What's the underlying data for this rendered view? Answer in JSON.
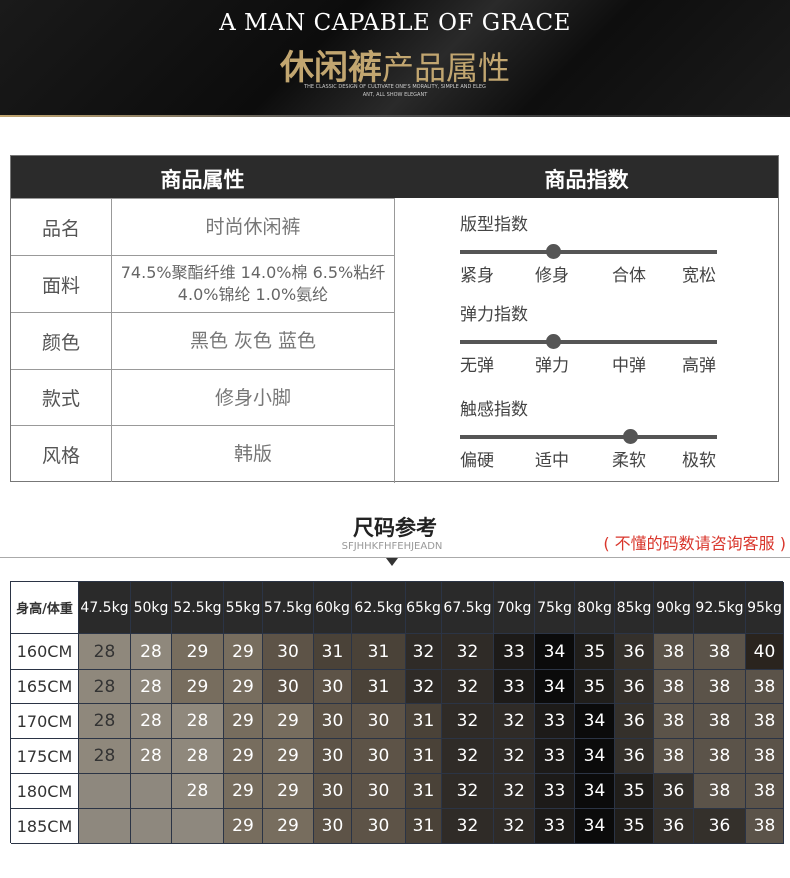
{
  "banner": {
    "title_en": "A MAN CAPABLE OF GRACE",
    "title_cn_bold": "休闲裤",
    "title_cn_light": "产品属性",
    "tagline_1": "THE CLASSIC DESIGN OF CULTIVATE ONE'S MORALITY, SIMPLE AND ELEG",
    "tagline_2": "ANT, ALL SHOW ELEGANT",
    "accent": "#c2a670"
  },
  "attributes": {
    "header_left": "商品属性",
    "header_right": "商品指数",
    "rows": [
      {
        "k": "品名",
        "v": "时尚休闲裤"
      },
      {
        "k": "面料",
        "v": "74.5%聚酯纤维 14.0%棉 6.5%粘纤 4.0%锦纶 1.0%氨纶"
      },
      {
        "k": "颜色",
        "v": "黑色 灰色 蓝色"
      },
      {
        "k": "款式",
        "v": "修身小脚"
      },
      {
        "k": "风格",
        "v": "韩版"
      }
    ]
  },
  "indices": [
    {
      "title": "版型指数",
      "labels": [
        "紧身",
        "修身",
        "合体",
        "宽松"
      ],
      "level": 0.36
    },
    {
      "title": "弹力指数",
      "labels": [
        "无弹",
        "弹力",
        "中弹",
        "高弹"
      ],
      "level": 0.36
    },
    {
      "title": "触感指数",
      "labels": [
        "偏硬",
        "适中",
        "柔软",
        "极软"
      ],
      "level": 0.66
    }
  ],
  "size": {
    "title": "尺码参考",
    "subtitle": "SFJHHKFHFEHJEADN",
    "note": "( 不懂的码数请咨询客服 )",
    "corner": "身高/体重",
    "weights": [
      "47.5kg",
      "50kg",
      "52.5kg",
      "55kg",
      "57.5kg",
      "60kg",
      "62.5kg",
      "65kg",
      "67.5kg",
      "70kg",
      "75kg",
      "80kg",
      "85kg",
      "90kg",
      "92.5kg",
      "95kg"
    ],
    "rows": [
      {
        "h": "160CM",
        "v": [
          "28",
          "28",
          "29",
          "29",
          "30",
          "31",
          "31",
          "32",
          "32",
          "33",
          "34",
          "35",
          "36",
          "38",
          "38",
          "40"
        ]
      },
      {
        "h": "165CM",
        "v": [
          "28",
          "28",
          "29",
          "29",
          "30",
          "30",
          "31",
          "32",
          "32",
          "33",
          "34",
          "35",
          "36",
          "38",
          "38",
          "38"
        ]
      },
      {
        "h": "170CM",
        "v": [
          "28",
          "28",
          "28",
          "29",
          "29",
          "30",
          "30",
          "31",
          "32",
          "32",
          "33",
          "34",
          "36",
          "38",
          "38",
          "38"
        ]
      },
      {
        "h": "175CM",
        "v": [
          "28",
          "28",
          "28",
          "29",
          "29",
          "30",
          "30",
          "31",
          "32",
          "32",
          "33",
          "34",
          "36",
          "38",
          "38",
          "38"
        ]
      },
      {
        "h": "180CM",
        "v": [
          "",
          "",
          "28",
          "29",
          "29",
          "30",
          "30",
          "31",
          "32",
          "32",
          "33",
          "34",
          "35",
          "36",
          "38",
          "38"
        ]
      },
      {
        "h": "185CM",
        "v": [
          "",
          "",
          "",
          "29",
          "29",
          "30",
          "30",
          "31",
          "32",
          "32",
          "33",
          "34",
          "35",
          "36",
          "36",
          "38"
        ]
      }
    ]
  }
}
